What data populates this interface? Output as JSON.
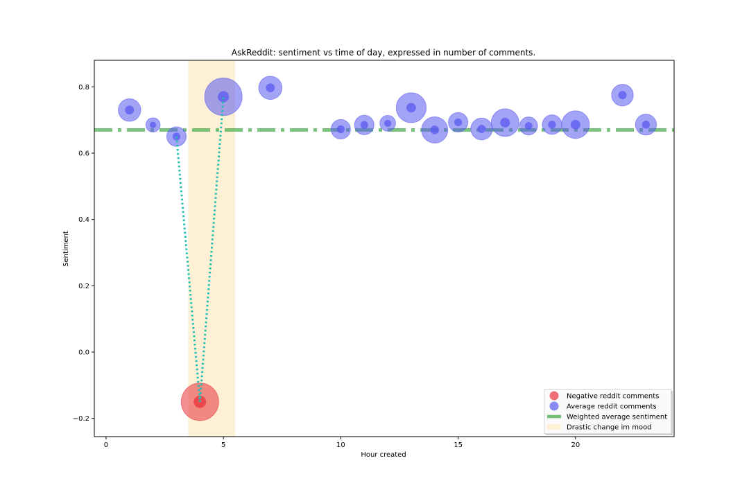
{
  "chart_data": {
    "type": "scatter",
    "title": "AskReddit: sentiment vs time of day, expressed in number of comments.",
    "xlabel": "Hour created",
    "ylabel": "Sentiment",
    "xlim": [
      -0.5,
      24.2
    ],
    "ylim": [
      -0.255,
      0.88
    ],
    "xticks": [
      0,
      5,
      10,
      15,
      20
    ],
    "yticks": [
      -0.2,
      0.0,
      0.2,
      0.4,
      0.6,
      0.8
    ],
    "ytick_labels": [
      "−0.2",
      "0.0",
      "0.2",
      "0.4",
      "0.6",
      "0.8"
    ],
    "grid": false,
    "legend_position": "lower-right",
    "highlight_span": {
      "name": "Drastic change im mood",
      "x_range": [
        3.5,
        5.5
      ],
      "color": "#fdf0d5"
    },
    "reference_line": {
      "name": "Weighted average sentiment",
      "y": 0.67,
      "color": "#4caf50",
      "style": "dash-dot"
    },
    "path_line": {
      "color": "#20c0b0",
      "style": "dotted",
      "points": [
        [
          3,
          0.65
        ],
        [
          4,
          -0.15
        ],
        [
          5,
          0.77
        ]
      ]
    },
    "series": [
      {
        "name": "Negative reddit comments",
        "color": "#e8343c",
        "points": [
          {
            "x": 4,
            "y": -0.15,
            "size": 1.0,
            "inner": 0.33
          }
        ]
      },
      {
        "name": "Average reddit comments",
        "color": "#5a5af0",
        "points": [
          {
            "x": 1,
            "y": 0.73,
            "size": 0.6,
            "inner": 0.4
          },
          {
            "x": 2,
            "y": 0.685,
            "size": 0.38,
            "inner": 0.45
          },
          {
            "x": 3,
            "y": 0.65,
            "size": 0.52,
            "inner": 0.4
          },
          {
            "x": 5,
            "y": 0.77,
            "size": 1.0,
            "inner": 0.3
          },
          {
            "x": 7,
            "y": 0.797,
            "size": 0.62,
            "inner": 0.38
          },
          {
            "x": 10,
            "y": 0.672,
            "size": 0.52,
            "inner": 0.4
          },
          {
            "x": 11,
            "y": 0.685,
            "size": 0.52,
            "inner": 0.4
          },
          {
            "x": 12,
            "y": 0.69,
            "size": 0.42,
            "inner": 0.45
          },
          {
            "x": 13,
            "y": 0.737,
            "size": 0.8,
            "inner": 0.32
          },
          {
            "x": 14,
            "y": 0.67,
            "size": 0.7,
            "inner": 0.33
          },
          {
            "x": 15,
            "y": 0.693,
            "size": 0.52,
            "inner": 0.4
          },
          {
            "x": 16,
            "y": 0.673,
            "size": 0.58,
            "inner": 0.38
          },
          {
            "x": 17,
            "y": 0.692,
            "size": 0.74,
            "inner": 0.35
          },
          {
            "x": 18,
            "y": 0.682,
            "size": 0.48,
            "inner": 0.42
          },
          {
            "x": 19,
            "y": 0.686,
            "size": 0.52,
            "inner": 0.4
          },
          {
            "x": 20,
            "y": 0.686,
            "size": 0.74,
            "inner": 0.35
          },
          {
            "x": 22,
            "y": 0.775,
            "size": 0.58,
            "inner": 0.38
          },
          {
            "x": 23,
            "y": 0.686,
            "size": 0.56,
            "inner": 0.38
          }
        ]
      }
    ],
    "legend": [
      {
        "label": "Negative reddit comments",
        "kind": "dot",
        "color": "#e8343c"
      },
      {
        "label": "Average reddit comments",
        "kind": "dot",
        "color": "#5a5af0"
      },
      {
        "label": "Weighted average sentiment",
        "kind": "line",
        "color": "#4caf50"
      },
      {
        "label": "Drastic change im mood",
        "kind": "patch",
        "color": "#fdf0d5"
      }
    ]
  }
}
